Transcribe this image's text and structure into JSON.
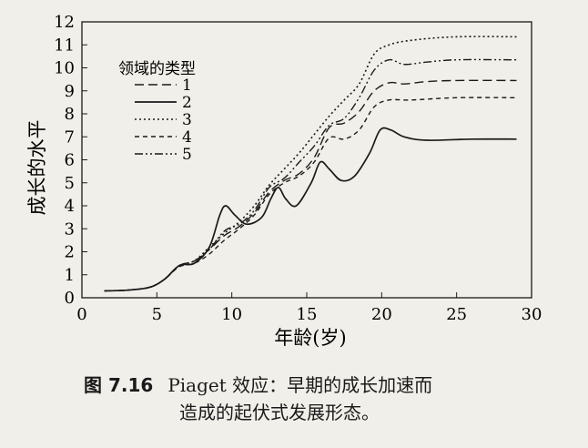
{
  "chart_data": {
    "type": "line",
    "ylabel": "成长的水平",
    "xlabel": "年龄(岁)",
    "xlim": [
      0,
      30
    ],
    "ylim": [
      0,
      12
    ],
    "x_ticks": [
      "0",
      "5",
      "10",
      "15",
      "20",
      "25",
      "30"
    ],
    "y_ticks": [
      "0",
      "1",
      "2",
      "3",
      "4",
      "5",
      "6",
      "7",
      "8",
      "9",
      "10",
      "11",
      "12"
    ],
    "grid": false,
    "legend_title": "领域的类型",
    "legend_position": "top-left",
    "series": [
      {
        "name": "1",
        "dash": "long-dash",
        "points": [
          [
            1.5,
            0.3
          ],
          [
            3,
            0.33
          ],
          [
            4.5,
            0.45
          ],
          [
            5.5,
            0.8
          ],
          [
            6.5,
            1.4
          ],
          [
            7.5,
            1.6
          ],
          [
            8.5,
            2.1
          ],
          [
            9.5,
            2.7
          ],
          [
            10.5,
            3.1
          ],
          [
            11.5,
            3.7
          ],
          [
            12.5,
            4.6
          ],
          [
            13.5,
            5.1
          ],
          [
            14.5,
            5.4
          ],
          [
            15.5,
            6.1
          ],
          [
            16.5,
            7.4
          ],
          [
            17.5,
            7.6
          ],
          [
            18.5,
            8.1
          ],
          [
            19.5,
            9.0
          ],
          [
            20.5,
            9.35
          ],
          [
            21.5,
            9.3
          ],
          [
            23,
            9.4
          ],
          [
            25,
            9.45
          ],
          [
            29,
            9.45
          ]
        ]
      },
      {
        "name": "2",
        "dash": "solid",
        "points": [
          [
            1.5,
            0.3
          ],
          [
            3,
            0.33
          ],
          [
            4.5,
            0.45
          ],
          [
            5.5,
            0.8
          ],
          [
            6.5,
            1.4
          ],
          [
            7.5,
            1.5
          ],
          [
            8.5,
            2.2
          ],
          [
            9.2,
            3.6
          ],
          [
            9.6,
            4.0
          ],
          [
            10.2,
            3.6
          ],
          [
            11,
            3.2
          ],
          [
            12,
            3.5
          ],
          [
            12.6,
            4.3
          ],
          [
            13.1,
            4.8
          ],
          [
            13.6,
            4.3
          ],
          [
            14.3,
            4.0
          ],
          [
            15.3,
            5.0
          ],
          [
            15.9,
            5.9
          ],
          [
            16.5,
            5.6
          ],
          [
            17.3,
            5.1
          ],
          [
            18.2,
            5.3
          ],
          [
            19.2,
            6.3
          ],
          [
            19.9,
            7.3
          ],
          [
            20.6,
            7.3
          ],
          [
            21.5,
            7.0
          ],
          [
            23,
            6.85
          ],
          [
            26,
            6.9
          ],
          [
            29,
            6.9
          ]
        ]
      },
      {
        "name": "3",
        "dash": "dotted",
        "points": [
          [
            1.5,
            0.3
          ],
          [
            3,
            0.33
          ],
          [
            4.5,
            0.45
          ],
          [
            5.5,
            0.8
          ],
          [
            6.5,
            1.4
          ],
          [
            7.5,
            1.6
          ],
          [
            8.5,
            2.2
          ],
          [
            9.5,
            2.8
          ],
          [
            10.5,
            3.3
          ],
          [
            11.5,
            4.0
          ],
          [
            12.5,
            4.9
          ],
          [
            13.5,
            5.6
          ],
          [
            14.5,
            6.3
          ],
          [
            15.5,
            7.1
          ],
          [
            16.5,
            7.9
          ],
          [
            17.5,
            8.6
          ],
          [
            18.5,
            9.3
          ],
          [
            19.5,
            10.6
          ],
          [
            20.5,
            11.0
          ],
          [
            22,
            11.2
          ],
          [
            25,
            11.35
          ],
          [
            29,
            11.35
          ]
        ]
      },
      {
        "name": "4",
        "dash": "short-dash",
        "points": [
          [
            1.5,
            0.3
          ],
          [
            3,
            0.33
          ],
          [
            4.5,
            0.45
          ],
          [
            5.5,
            0.8
          ],
          [
            6.5,
            1.35
          ],
          [
            7.5,
            1.5
          ],
          [
            8.5,
            1.9
          ],
          [
            9.5,
            2.5
          ],
          [
            10.5,
            3.0
          ],
          [
            11.5,
            3.6
          ],
          [
            12.5,
            4.5
          ],
          [
            13.5,
            5.0
          ],
          [
            14.5,
            5.3
          ],
          [
            15.5,
            5.9
          ],
          [
            16.5,
            6.95
          ],
          [
            17.5,
            6.9
          ],
          [
            18.5,
            7.3
          ],
          [
            19.5,
            8.3
          ],
          [
            20.5,
            8.6
          ],
          [
            22,
            8.6
          ],
          [
            25,
            8.7
          ],
          [
            29,
            8.7
          ]
        ]
      },
      {
        "name": "5",
        "dash": "dash-dot-dot",
        "points": [
          [
            1.5,
            0.3
          ],
          [
            3,
            0.33
          ],
          [
            4.5,
            0.45
          ],
          [
            5.5,
            0.8
          ],
          [
            6.5,
            1.4
          ],
          [
            7.5,
            1.6
          ],
          [
            8.5,
            2.1
          ],
          [
            9.5,
            2.9
          ],
          [
            10.5,
            3.2
          ],
          [
            11.5,
            3.8
          ],
          [
            12.5,
            4.8
          ],
          [
            13.5,
            5.2
          ],
          [
            14.5,
            5.9
          ],
          [
            15.5,
            6.6
          ],
          [
            16.5,
            7.5
          ],
          [
            17.5,
            7.8
          ],
          [
            18.5,
            8.7
          ],
          [
            19.5,
            9.9
          ],
          [
            20.5,
            10.35
          ],
          [
            21.5,
            10.15
          ],
          [
            23,
            10.25
          ],
          [
            25,
            10.35
          ],
          [
            29,
            10.35
          ]
        ]
      }
    ]
  },
  "caption": {
    "label": "图 7.16",
    "line1": "Piaget 效应：早期的成长加速而",
    "line2": "造成的起伏式发展形态。"
  }
}
